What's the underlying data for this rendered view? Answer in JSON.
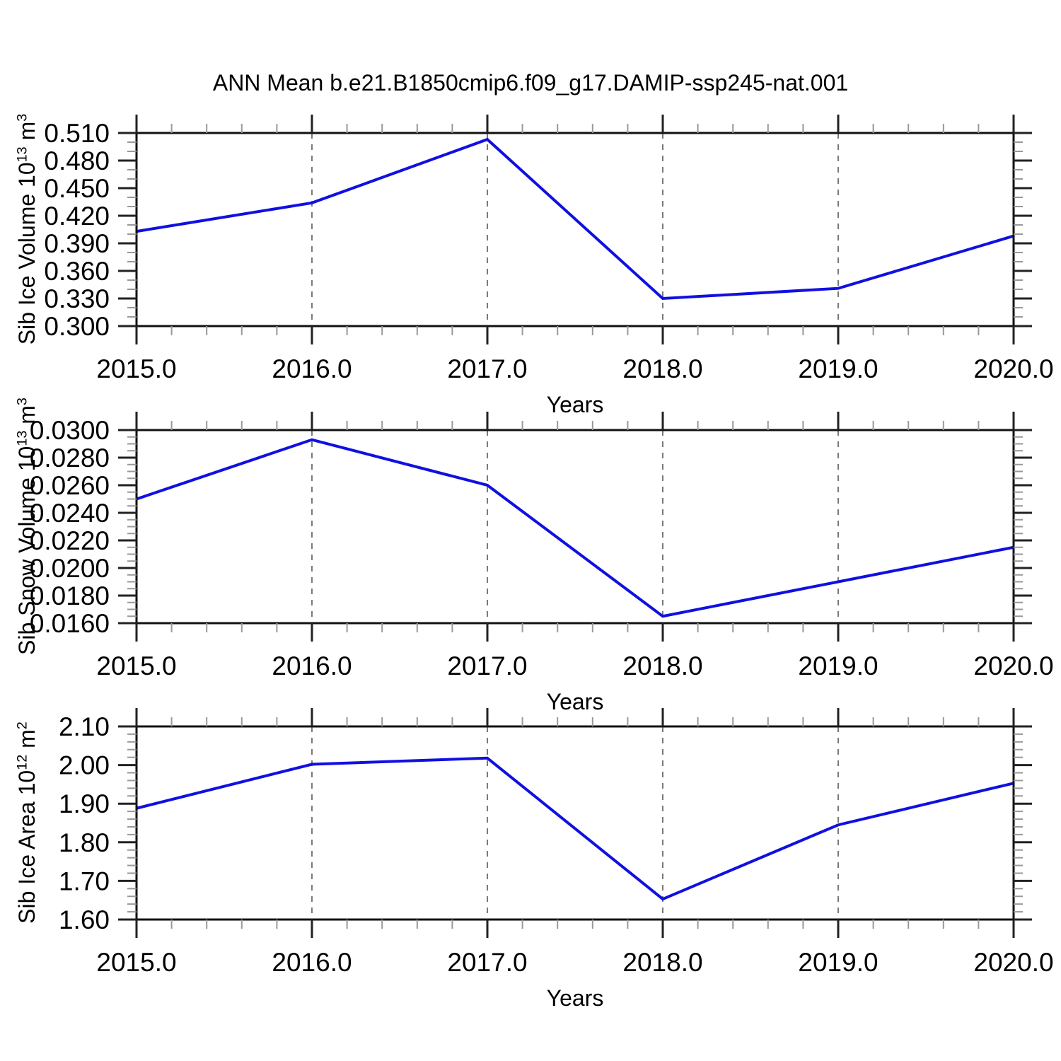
{
  "title": "ANN Mean b.e21.B1850cmip6.f09_g17.DAMIP-ssp245-nat.001",
  "colors": {
    "line": "#1010e0",
    "axis": "#111111",
    "major_tick": "#222222",
    "minor_tick": "#999999",
    "grid": "#7a7a7a",
    "text": "#000000"
  },
  "chart_data": [
    {
      "type": "line",
      "id": "sib-ice-volume",
      "ylabel": {
        "pre": "Sib Ice Volume 10",
        "sup1": "13",
        "mid": " m",
        "sup2": "3"
      },
      "xlabel": "Years",
      "x": [
        2015,
        2016,
        2017,
        2018,
        2019,
        2020
      ],
      "values": [
        0.403,
        0.434,
        0.503,
        0.33,
        0.341,
        0.398
      ],
      "xlim": [
        2015,
        2020
      ],
      "xmajor": 1,
      "xminor": 0.2,
      "ylim": [
        0.3,
        0.51
      ],
      "ymajor": 0.03,
      "yminor": 0.01,
      "grid_x": [
        2016,
        2017,
        2018,
        2019
      ],
      "grid_style": "vertical-dashed",
      "xticklabels": [
        "2015.0",
        "2016.0",
        "2017.0",
        "2018.0",
        "2019.0",
        "2020.0"
      ],
      "yticklabels": [
        "0.300",
        "0.330",
        "0.360",
        "0.390",
        "0.420",
        "0.450",
        "0.480",
        "0.510"
      ]
    },
    {
      "type": "line",
      "id": "sib-snow-volume",
      "ylabel": {
        "pre": "Sib Snow Volume 10",
        "sup1": "13",
        "mid": " m",
        "sup2": "3"
      },
      "xlabel": "Years",
      "x": [
        2015,
        2016,
        2017,
        2018,
        2019,
        2020
      ],
      "values": [
        0.025,
        0.0293,
        0.026,
        0.0165,
        0.019,
        0.0215
      ],
      "xlim": [
        2015,
        2020
      ],
      "xmajor": 1,
      "xminor": 0.2,
      "ylim": [
        0.016,
        0.03
      ],
      "ymajor": 0.002,
      "yminor": 0.0005,
      "grid_x": [
        2016,
        2017,
        2018,
        2019
      ],
      "grid_style": "vertical-dashed",
      "xticklabels": [
        "2015.0",
        "2016.0",
        "2017.0",
        "2018.0",
        "2019.0",
        "2020.0"
      ],
      "yticklabels": [
        "0.0160",
        "0.0180",
        "0.0200",
        "0.0220",
        "0.0240",
        "0.0260",
        "0.0280",
        "0.0300"
      ]
    },
    {
      "type": "line",
      "id": "sib-ice-area",
      "ylabel": {
        "pre": "Sib Ice Area 10",
        "sup1": "12",
        "mid": " m",
        "sup2": "2"
      },
      "xlabel": "Years",
      "x": [
        2015,
        2016,
        2017,
        2018,
        2019,
        2020
      ],
      "values": [
        1.888,
        2.002,
        2.018,
        1.653,
        1.845,
        1.953
      ],
      "xlim": [
        2015,
        2020
      ],
      "xmajor": 1,
      "xminor": 0.2,
      "ylim": [
        1.6,
        2.1
      ],
      "ymajor": 0.1,
      "yminor": 0.02,
      "grid_x": [
        2016,
        2017,
        2018,
        2019
      ],
      "grid_style": "vertical-dashed",
      "xticklabels": [
        "2015.0",
        "2016.0",
        "2017.0",
        "2018.0",
        "2019.0",
        "2020.0"
      ],
      "yticklabels": [
        "1.60",
        "1.70",
        "1.80",
        "1.90",
        "2.00",
        "2.10"
      ]
    }
  ]
}
